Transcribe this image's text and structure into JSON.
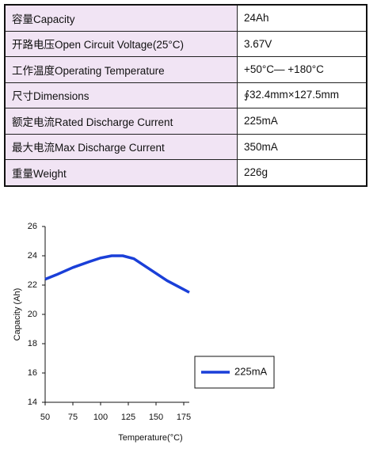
{
  "table": {
    "rows": [
      [
        "容量Capacity",
        "24Ah"
      ],
      [
        "开路电压Open Circuit Voltage(25°C)",
        "3.67V"
      ],
      [
        "工作温度Operating Temperature",
        "+50°C— +180°C"
      ],
      [
        "尺寸Dimensions",
        "∮32.4mm×127.5mm"
      ],
      [
        "额定电流Rated Discharge Current",
        "225mA"
      ],
      [
        "最大电流Max Discharge Current",
        "350mA"
      ],
      [
        "重量Weight",
        "226g"
      ]
    ]
  },
  "chart_data": {
    "type": "line",
    "x_label": "Temperature(°C)",
    "y_label": "Capacity (Ah)",
    "x": [
      50,
      60,
      75,
      90,
      100,
      110,
      120,
      130,
      140,
      150,
      160,
      170,
      180
    ],
    "series": [
      {
        "name": "225mA",
        "color": "#1a3fd8",
        "values": [
          22.4,
          22.7,
          23.2,
          23.6,
          23.85,
          24.0,
          24.0,
          23.8,
          23.3,
          22.8,
          22.3,
          21.9,
          21.5
        ]
      }
    ],
    "xlim": [
      50,
      180
    ],
    "ylim": [
      14,
      26
    ],
    "xticks": [
      50,
      75,
      100,
      125,
      150,
      175
    ],
    "yticks": [
      14,
      16,
      18,
      20,
      22,
      24,
      26
    ]
  }
}
